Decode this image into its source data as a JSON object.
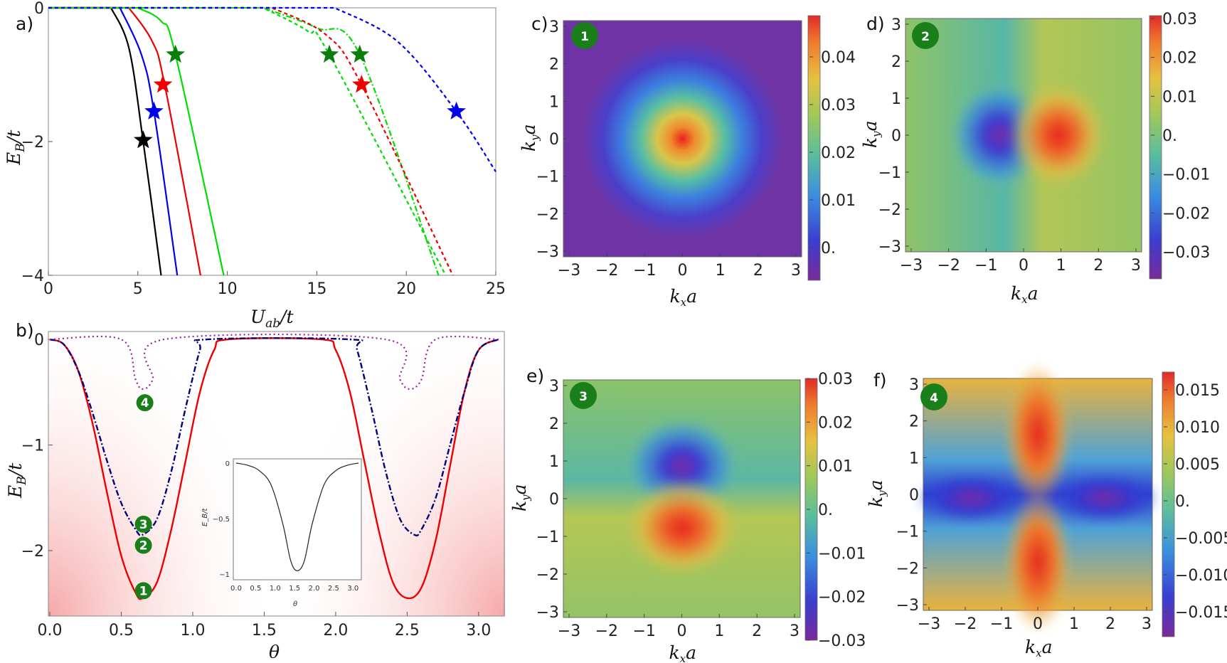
{
  "panels": {
    "a": {
      "label": "a)",
      "xlabel": "U",
      "xlabel_sub": "ab",
      "xlabel_tail": "/t",
      "ylabel": "E",
      "ylabel_sub": "B",
      "ylabel_tail": "/t",
      "xticks": [
        "0",
        "5",
        "10",
        "15",
        "20",
        "25"
      ],
      "yticks": [
        "0",
        "−2",
        "−4"
      ]
    },
    "b": {
      "label": "b)",
      "xlabel": "θ",
      "ylabel": "E",
      "ylabel_sub": "B",
      "ylabel_tail": "/t",
      "xticks": [
        "0.0",
        "0.5",
        "1.0",
        "1.5",
        "2.0",
        "2.5",
        "3.0"
      ],
      "yticks": [
        "0",
        "−1",
        "−2"
      ],
      "markers": [
        "1",
        "2",
        "3",
        "4"
      ],
      "inset": {
        "xlabel": "θ",
        "ylabel": "E_B/t",
        "xticks": [
          "0.0",
          "0.5",
          "1.0",
          "1.5",
          "2.0",
          "2.5",
          "3.0"
        ],
        "yticks": [
          "0",
          "−0.5",
          "−1"
        ]
      }
    },
    "c": {
      "label": "c)",
      "marker": "1",
      "cb_ticks": [
        "0.04",
        "0.03",
        "0.02",
        "0.01",
        "0."
      ]
    },
    "d": {
      "label": "d)",
      "marker": "2",
      "cb_ticks": [
        "0.03",
        "0.02",
        "0.01",
        "0.",
        "−0.01",
        "−0.02",
        "−0.03"
      ]
    },
    "e": {
      "label": "e)",
      "marker": "3",
      "cb_ticks": [
        "0.03",
        "0.02",
        "0.01",
        "0.",
        "−0.01",
        "−0.02",
        "−0.03"
      ]
    },
    "f": {
      "label": "f)",
      "marker": "4",
      "cb_ticks": [
        "0.015",
        "0.010",
        "0.005",
        "0.",
        "−0.005",
        "−0.010",
        "−0.015"
      ]
    }
  },
  "heatmap_axes": {
    "xlabel": "k",
    "xlabel_sub": "x",
    "ylabel": "k",
    "ylabel_sub": "y",
    "label_tail": "a",
    "ticks": [
      "−3",
      "−2",
      "−1",
      "0",
      "1",
      "2",
      "3"
    ]
  },
  "colors": {
    "black": "#000000",
    "blue": "#0000ee",
    "red": "#ee0000",
    "green": "#00dd00",
    "navy": "#000080",
    "purple": "#a0209f",
    "star_green": "#0a7d0a",
    "marker_green": "#1a7f1a",
    "shade": "#f7b3b3"
  },
  "chart_data": [
    {
      "type": "line",
      "panel": "a",
      "xlabel": "U_ab/t",
      "ylabel": "E_B/t",
      "xlim": [
        0,
        25
      ],
      "ylim": [
        -4,
        0
      ],
      "series": [
        {
          "color": "black",
          "style": "solid",
          "x": [
            0,
            3.5,
            4.5,
            5.3,
            6.3
          ],
          "y": [
            0,
            0,
            -0.6,
            -2.0,
            -4
          ]
        },
        {
          "color": "blue",
          "style": "solid",
          "x": [
            0,
            4.0,
            5.2,
            5.9,
            7.2
          ],
          "y": [
            0,
            0,
            -0.7,
            -1.55,
            -4
          ]
        },
        {
          "color": "red",
          "style": "solid",
          "x": [
            0,
            4.5,
            5.8,
            6.5,
            8.5
          ],
          "y": [
            0,
            0,
            -0.5,
            -1.15,
            -4
          ]
        },
        {
          "color": "green",
          "style": "solid",
          "x": [
            0,
            5.0,
            6.3,
            7.1,
            9.8
          ],
          "y": [
            0,
            0,
            -0.2,
            -0.7,
            -4
          ]
        },
        {
          "color": "green",
          "style": "dot-dash",
          "x": [
            0,
            12.0,
            15.0,
            17.4,
            21.8
          ],
          "y": [
            0,
            0,
            -0.3,
            -0.7,
            -4
          ]
        },
        {
          "color": "red",
          "style": "dashed",
          "x": [
            0,
            12.5,
            15.5,
            17.5,
            22.6
          ],
          "y": [
            0,
            0,
            -0.4,
            -1.15,
            -4
          ]
        },
        {
          "color": "green",
          "style": "dashed",
          "x": [
            0,
            12.0,
            14.5,
            15.7,
            22.2
          ],
          "y": [
            0,
            0,
            -0.35,
            -0.7,
            -4
          ]
        },
        {
          "color": "blue",
          "style": "dashed",
          "x": [
            0,
            16.0,
            19.5,
            22.8,
            25
          ],
          "y": [
            0,
            0,
            -0.5,
            -1.55,
            -2.45
          ]
        }
      ],
      "stars": [
        {
          "color": "black",
          "x": 5.3,
          "y": -1.98
        },
        {
          "color": "blue",
          "x": 5.9,
          "y": -1.55
        },
        {
          "color": "red",
          "x": 6.4,
          "y": -1.15
        },
        {
          "color": "star_green",
          "x": 7.1,
          "y": -0.7
        },
        {
          "color": "star_green",
          "x": 15.7,
          "y": -0.7
        },
        {
          "color": "star_green",
          "x": 17.4,
          "y": -0.7
        },
        {
          "color": "red",
          "x": 17.5,
          "y": -1.15
        },
        {
          "color": "blue",
          "x": 22.8,
          "y": -1.55
        }
      ]
    },
    {
      "type": "line",
      "panel": "b",
      "xlabel": "θ",
      "ylabel": "E_B/t",
      "xlim": [
        0,
        3.14
      ],
      "ylim": [
        -2.55,
        0
      ],
      "series": [
        {
          "color": "red",
          "style": "solid",
          "x": [
            0,
            0.1,
            0.2,
            0.3,
            0.4,
            0.5,
            0.6,
            0.65,
            0.75,
            0.85,
            0.95,
            1.05,
            1.15,
            1.25,
            1.9,
            2.0,
            2.1,
            2.2,
            2.3,
            2.4,
            2.5,
            2.6,
            2.7,
            2.8,
            2.9,
            3.0,
            3.14
          ],
          "y": [
            0,
            -0.05,
            -0.3,
            -0.8,
            -1.45,
            -2.05,
            -2.4,
            -2.45,
            -2.3,
            -1.8,
            -1.15,
            -0.5,
            -0.1,
            0,
            0,
            -0.1,
            -0.5,
            -1.15,
            -1.8,
            -2.3,
            -2.45,
            -2.35,
            -1.9,
            -1.2,
            -0.5,
            -0.1,
            0
          ]
        },
        {
          "color": "navy",
          "style": "dot-dash",
          "x": [
            0,
            0.1,
            0.2,
            0.3,
            0.4,
            0.5,
            0.6,
            0.65,
            0.75,
            0.85,
            0.95,
            1.05,
            1.1,
            2.1,
            2.15,
            2.25,
            2.35,
            2.45,
            2.55,
            2.6,
            2.7,
            2.8,
            2.9,
            3.0,
            3.14
          ],
          "y": [
            0,
            -0.05,
            -0.3,
            -0.7,
            -1.15,
            -1.55,
            -1.8,
            -1.85,
            -1.7,
            -1.25,
            -0.65,
            -0.1,
            0,
            0,
            -0.1,
            -0.65,
            -1.25,
            -1.7,
            -1.85,
            -1.8,
            -1.5,
            -1.0,
            -0.5,
            -0.1,
            0
          ]
        },
        {
          "color": "purple",
          "style": "dotted",
          "x": [
            0,
            0.5,
            0.6,
            0.65,
            0.72,
            0.8,
            2.35,
            2.45,
            2.52,
            2.6,
            2.7,
            3.14
          ],
          "y": [
            0,
            0,
            -0.38,
            -0.47,
            -0.38,
            0,
            0,
            -0.38,
            -0.47,
            -0.38,
            0,
            0
          ]
        }
      ],
      "markers": [
        {
          "label": "4",
          "x": 0.65,
          "y": -0.6
        },
        {
          "label": "3",
          "x": 0.64,
          "y": -1.75
        },
        {
          "label": "2",
          "x": 0.64,
          "y": -1.95
        },
        {
          "label": "1",
          "x": 0.64,
          "y": -2.38
        }
      ],
      "inset": {
        "xlim": [
          0,
          3.14
        ],
        "ylim": [
          -1,
          0
        ],
        "x": [
          0,
          0.3,
          0.6,
          0.9,
          1.2,
          1.4,
          1.57,
          1.75,
          1.95,
          2.25,
          2.55,
          2.85,
          3.14
        ],
        "y": [
          0,
          -0.02,
          -0.07,
          -0.2,
          -0.55,
          -0.88,
          -0.97,
          -0.88,
          -0.55,
          -0.2,
          -0.07,
          -0.02,
          0
        ]
      }
    },
    {
      "type": "heatmap",
      "panel": "c",
      "range": [
        -3,
        3
      ],
      "cb_range": [
        0,
        0.048
      ],
      "pattern": "gaussian-center"
    },
    {
      "type": "heatmap",
      "panel": "d",
      "range": [
        -3,
        3
      ],
      "cb_range": [
        -0.03,
        0.03
      ],
      "pattern": "dipole-x"
    },
    {
      "type": "heatmap",
      "panel": "e",
      "range": [
        -3,
        3
      ],
      "cb_range": [
        -0.03,
        0.03
      ],
      "pattern": "dipole-y-inverted"
    },
    {
      "type": "heatmap",
      "panel": "f",
      "range": [
        -3,
        3
      ],
      "cb_range": [
        -0.018,
        0.018
      ],
      "pattern": "quadrupole"
    }
  ]
}
